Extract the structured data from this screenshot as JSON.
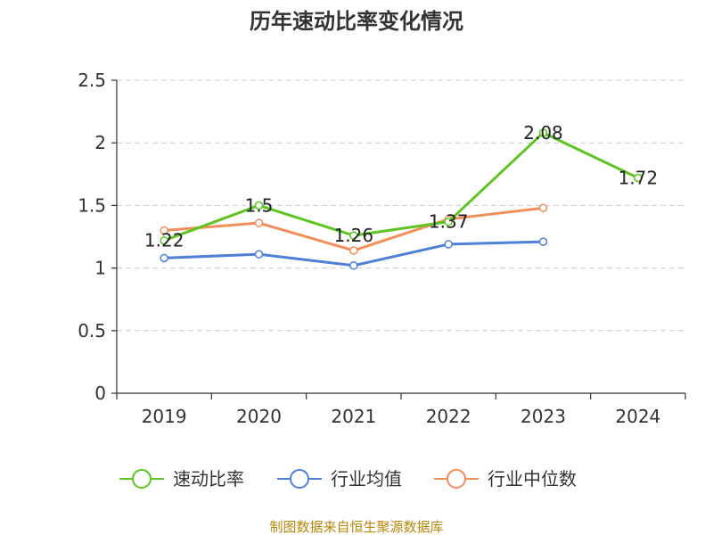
{
  "chart_data": {
    "type": "line",
    "title": "历年速动比率变化情况",
    "categories": [
      "2019",
      "2020",
      "2021",
      "2022",
      "2023",
      "2024"
    ],
    "ylim": [
      0,
      2.5
    ],
    "yticks": [
      "0",
      "0.5",
      "1",
      "1.5",
      "2",
      "2.5"
    ],
    "grid": true,
    "legend_position": "bottom",
    "series": [
      {
        "name": "速动比率",
        "color": "#5ec421",
        "values": [
          1.22,
          1.5,
          1.26,
          1.37,
          2.08,
          1.72
        ],
        "labels": [
          "1.22",
          "1.5",
          "1.26",
          "1.37",
          "2.08",
          "1.72"
        ]
      },
      {
        "name": "行业均值",
        "color": "#4e7fd9",
        "values": [
          1.08,
          1.11,
          1.02,
          1.19,
          1.21,
          null
        ]
      },
      {
        "name": "行业中位数",
        "color": "#f28e5a",
        "values": [
          1.3,
          1.36,
          1.14,
          1.39,
          1.48,
          null
        ]
      }
    ],
    "source": "制图数据来自恒生聚源数据库"
  }
}
